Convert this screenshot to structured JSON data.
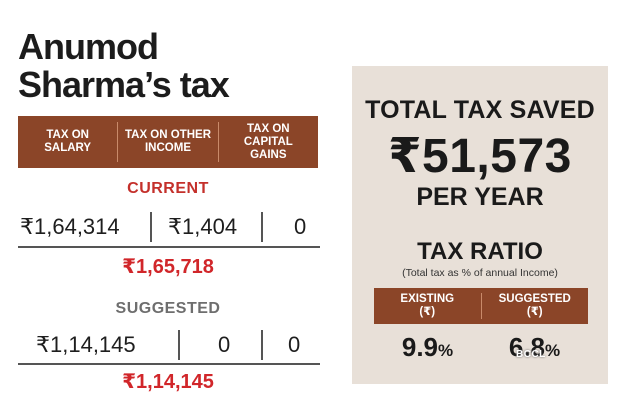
{
  "title": {
    "line1": "Anumod",
    "line2": "Sharma’s tax"
  },
  "columns": [
    "TAX ON SALARY",
    "TAX ON OTHER INCOME",
    "TAX ON CAPITAL GAINS"
  ],
  "current": {
    "label": "CURRENT",
    "values": [
      "₹1,64,314",
      "₹1,404",
      "0"
    ],
    "total": "₹1,65,718"
  },
  "suggested": {
    "label": "SUGGESTED",
    "values": [
      "₹1,14,145",
      "0",
      "0"
    ],
    "total": "₹1,14,145"
  },
  "panel": {
    "saved_label": "TOTAL TAX SAVED",
    "saved_amount": "₹51,573",
    "per_year": "PER YEAR",
    "ratio_label": "TAX RATIO",
    "ratio_note": "(Total tax as % of annual Income)",
    "ratio_columns": [
      {
        "label": "EXISTING",
        "unit": "(₹)",
        "value": "9.9",
        "suffix": "%"
      },
      {
        "label": "SUGGESTED",
        "unit": "(₹)",
        "value": "6.8",
        "suffix": "%"
      }
    ]
  },
  "watermark": "BCCL",
  "colors": {
    "header": "#8b4528",
    "accent_red": "#d1262a",
    "panel_bg": "#e8e0d8"
  }
}
